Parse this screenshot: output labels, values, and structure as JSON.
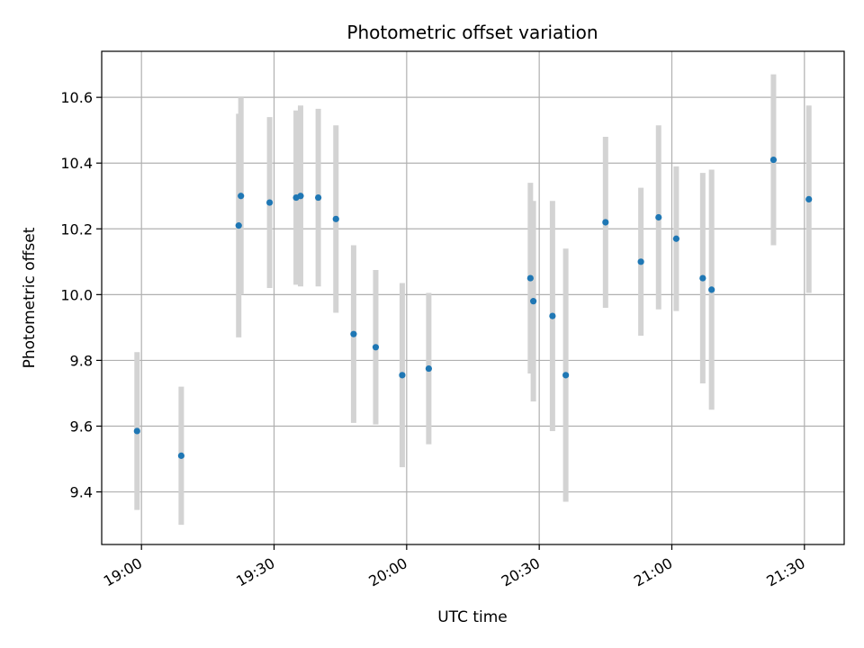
{
  "chart_data": {
    "type": "scatter",
    "title": "Photometric offset variation",
    "xlabel": "UTC time",
    "ylabel": "Photometric offset",
    "x_ticks": [
      "19:00",
      "19:30",
      "20:00",
      "20:30",
      "21:00",
      "21:30"
    ],
    "y_ticks": [
      "9.4",
      "9.6",
      "9.8",
      "10.0",
      "10.2",
      "10.4",
      "10.6"
    ],
    "xlim": [
      "18:51",
      "21:39"
    ],
    "ylim": [
      9.24,
      10.74
    ],
    "grid": true,
    "legend": "none",
    "marker_color": "#1f77b4",
    "errorbar_color": "#d3d3d3",
    "points": [
      {
        "t": "18:59",
        "y": 9.585,
        "err": 0.24
      },
      {
        "t": "19:09",
        "y": 9.51,
        "err": 0.21
      },
      {
        "t": "19:22",
        "y": 10.21,
        "err": 0.34
      },
      {
        "t": "19:22:30",
        "y": 10.3,
        "err": 0.3
      },
      {
        "t": "19:29",
        "y": 10.28,
        "err": 0.26
      },
      {
        "t": "19:35",
        "y": 10.295,
        "err": 0.265
      },
      {
        "t": "19:36",
        "y": 10.3,
        "err": 0.275
      },
      {
        "t": "19:40",
        "y": 10.295,
        "err": 0.27
      },
      {
        "t": "19:44",
        "y": 10.23,
        "err": 0.285
      },
      {
        "t": "19:48",
        "y": 9.88,
        "err": 0.27
      },
      {
        "t": "19:53",
        "y": 9.84,
        "err": 0.235
      },
      {
        "t": "19:59",
        "y": 9.755,
        "err": 0.28
      },
      {
        "t": "20:05",
        "y": 9.775,
        "err": 0.23
      },
      {
        "t": "20:28",
        "y": 10.05,
        "err": 0.29
      },
      {
        "t": "20:28:40",
        "y": 9.98,
        "err": 0.305
      },
      {
        "t": "20:33",
        "y": 9.935,
        "err": 0.35
      },
      {
        "t": "20:36",
        "y": 9.755,
        "err": 0.385
      },
      {
        "t": "20:45",
        "y": 10.22,
        "err": 0.26
      },
      {
        "t": "20:53",
        "y": 10.1,
        "err": 0.225
      },
      {
        "t": "20:57",
        "y": 10.235,
        "err": 0.28
      },
      {
        "t": "21:01",
        "y": 10.17,
        "err": 0.22
      },
      {
        "t": "21:07",
        "y": 10.05,
        "err": 0.32
      },
      {
        "t": "21:09",
        "y": 10.015,
        "err": 0.365
      },
      {
        "t": "21:23",
        "y": 10.41,
        "err": 0.26
      },
      {
        "t": "21:31",
        "y": 10.29,
        "err": 0.285
      }
    ]
  }
}
